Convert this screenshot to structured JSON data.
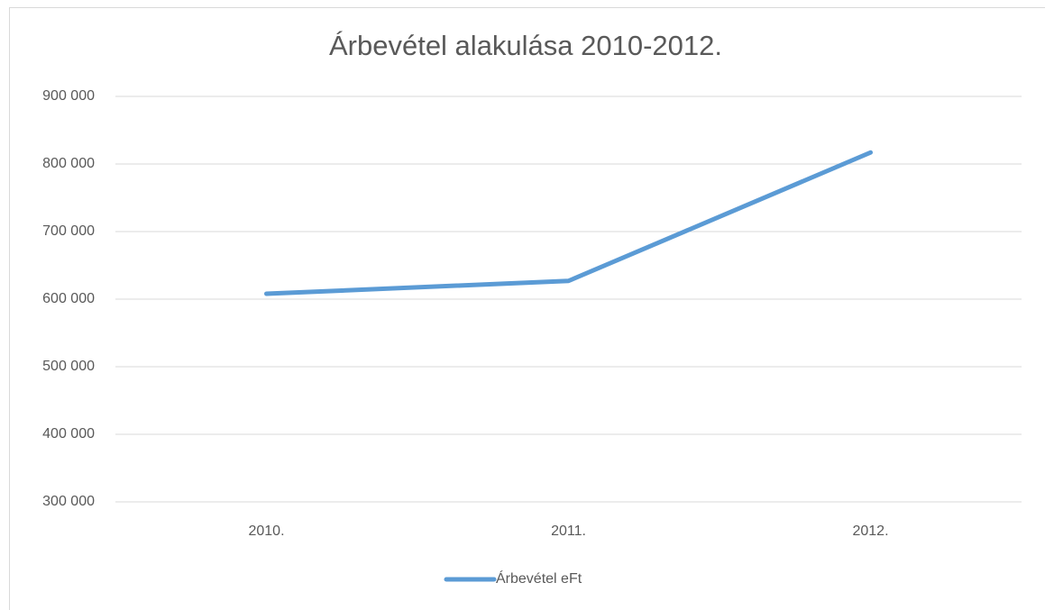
{
  "chart_data": {
    "type": "line",
    "title": "Árbevétel alakulása 2010-2012.",
    "categories": [
      "2010.",
      "2011.",
      "2012."
    ],
    "series": [
      {
        "name": "Árbevétel eFt",
        "color": "#5b9bd5",
        "values": [
          608000,
          627000,
          817000
        ]
      }
    ],
    "ylim": [
      300000,
      900000
    ],
    "yticks": [
      {
        "value": 300000,
        "label": "300 000"
      },
      {
        "value": 400000,
        "label": "400 000"
      },
      {
        "value": 500000,
        "label": "500 000"
      },
      {
        "value": 600000,
        "label": "600 000"
      },
      {
        "value": 700000,
        "label": "700 000"
      },
      {
        "value": 800000,
        "label": "800 000"
      },
      {
        "value": 900000,
        "label": "900 000"
      }
    ],
    "grid": true,
    "legend": "bottom"
  }
}
